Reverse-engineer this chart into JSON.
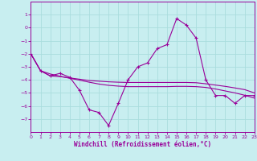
{
  "xlabel": "Windchill (Refroidissement éolien,°C)",
  "bg_color": "#c8eef0",
  "grid_color": "#aadddd",
  "line_color": "#990099",
  "x_values": [
    0,
    1,
    2,
    3,
    4,
    5,
    6,
    7,
    8,
    9,
    10,
    11,
    12,
    13,
    14,
    15,
    16,
    17,
    18,
    19,
    20,
    21,
    22,
    23
  ],
  "y_main": [
    -2.0,
    -3.3,
    -3.7,
    -3.5,
    -3.8,
    -4.8,
    -6.3,
    -6.5,
    -7.5,
    -5.8,
    -4.0,
    -3.0,
    -2.7,
    -1.6,
    -1.3,
    0.7,
    0.2,
    -0.8,
    -4.0,
    -5.2,
    -5.2,
    -5.8,
    -5.2,
    -5.2
  ],
  "y_line2": [
    -2.0,
    -3.3,
    -3.7,
    -3.75,
    -3.85,
    -3.95,
    -4.05,
    -4.1,
    -4.15,
    -4.18,
    -4.2,
    -4.2,
    -4.2,
    -4.2,
    -4.2,
    -4.2,
    -4.2,
    -4.22,
    -4.3,
    -4.4,
    -4.5,
    -4.62,
    -4.75,
    -5.0
  ],
  "y_line3": [
    -2.0,
    -3.3,
    -3.55,
    -3.72,
    -3.88,
    -4.02,
    -4.18,
    -4.32,
    -4.42,
    -4.48,
    -4.52,
    -4.52,
    -4.52,
    -4.52,
    -4.52,
    -4.5,
    -4.5,
    -4.52,
    -4.58,
    -4.7,
    -4.85,
    -5.0,
    -5.18,
    -5.4
  ],
  "ylim": [
    -8,
    2
  ],
  "xlim": [
    0,
    23
  ],
  "yticks": [
    1,
    0,
    -1,
    -2,
    -3,
    -4,
    -5,
    -6,
    -7
  ],
  "xticks": [
    0,
    1,
    2,
    3,
    4,
    5,
    6,
    7,
    8,
    9,
    10,
    11,
    12,
    13,
    14,
    15,
    16,
    17,
    18,
    19,
    20,
    21,
    22,
    23
  ]
}
